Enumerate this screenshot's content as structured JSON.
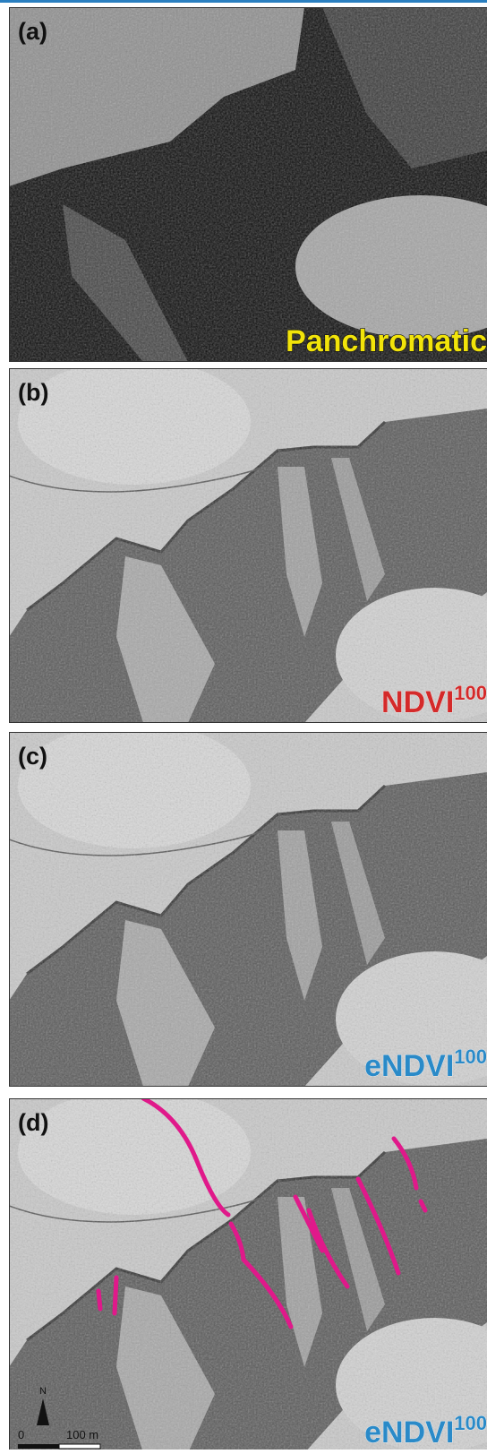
{
  "panels": [
    {
      "label": "(a)",
      "caption": "Panchromatic"
    },
    {
      "label": "(b)",
      "caption": "NDVI",
      "superscript": "100"
    },
    {
      "label": "(c)",
      "caption": "eNDVI",
      "superscript": "100"
    },
    {
      "label": "(d)",
      "caption": "eNDVI",
      "superscript": "100"
    }
  ],
  "scale_bar": {
    "north": "N",
    "zero": "0",
    "distance": "100 m"
  }
}
